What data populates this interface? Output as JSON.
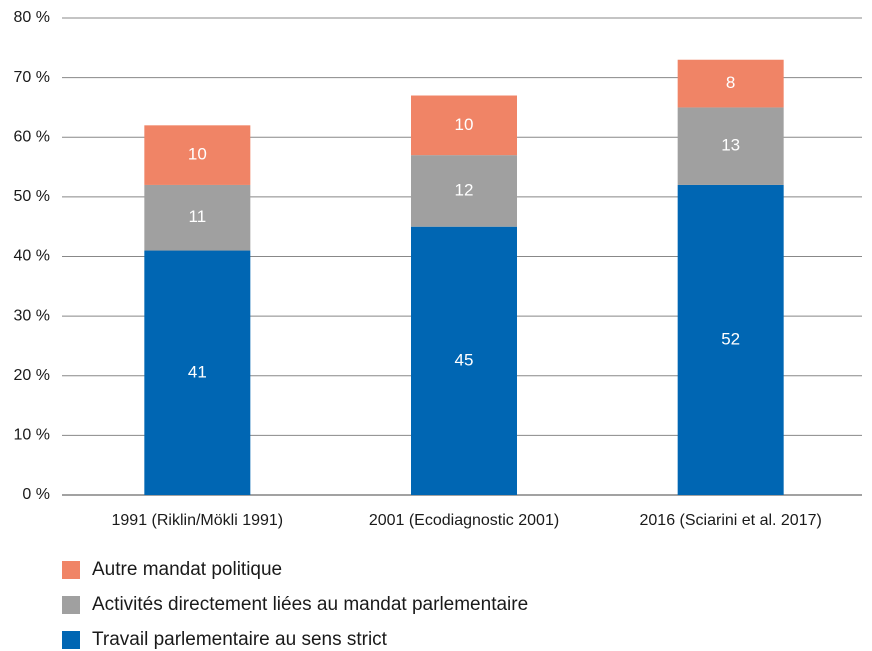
{
  "chart_data": {
    "type": "stacked_bar",
    "categories": [
      "1991 (Riklin/Mökli 1991)",
      "2001 (Ecodiagnostic 2001)",
      "2016 (Sciarini et al. 2017)"
    ],
    "series": [
      {
        "name": "Travail parlementaire au sens strict",
        "color": "#0066b3",
        "values": [
          41,
          45,
          52
        ]
      },
      {
        "name": "Activités directement liées au mandat parlementaire",
        "color": "#a0a0a0",
        "values": [
          11,
          12,
          13
        ]
      },
      {
        "name": "Autre mandat politique",
        "color": "#f08466",
        "values": [
          10,
          10,
          8
        ]
      }
    ],
    "ylim": [
      0,
      80
    ],
    "yticks": [
      {
        "value": 0,
        "label": "0 %"
      },
      {
        "value": 10,
        "label": "10 %"
      },
      {
        "value": 20,
        "label": "20 %"
      },
      {
        "value": 30,
        "label": "30 %"
      },
      {
        "value": 40,
        "label": "40 %"
      },
      {
        "value": 50,
        "label": "50 %"
      },
      {
        "value": 60,
        "label": "60 %"
      },
      {
        "value": 70,
        "label": "70 %"
      },
      {
        "value": 80,
        "label": "80 %"
      }
    ],
    "grid": true,
    "legend": "bottom"
  }
}
